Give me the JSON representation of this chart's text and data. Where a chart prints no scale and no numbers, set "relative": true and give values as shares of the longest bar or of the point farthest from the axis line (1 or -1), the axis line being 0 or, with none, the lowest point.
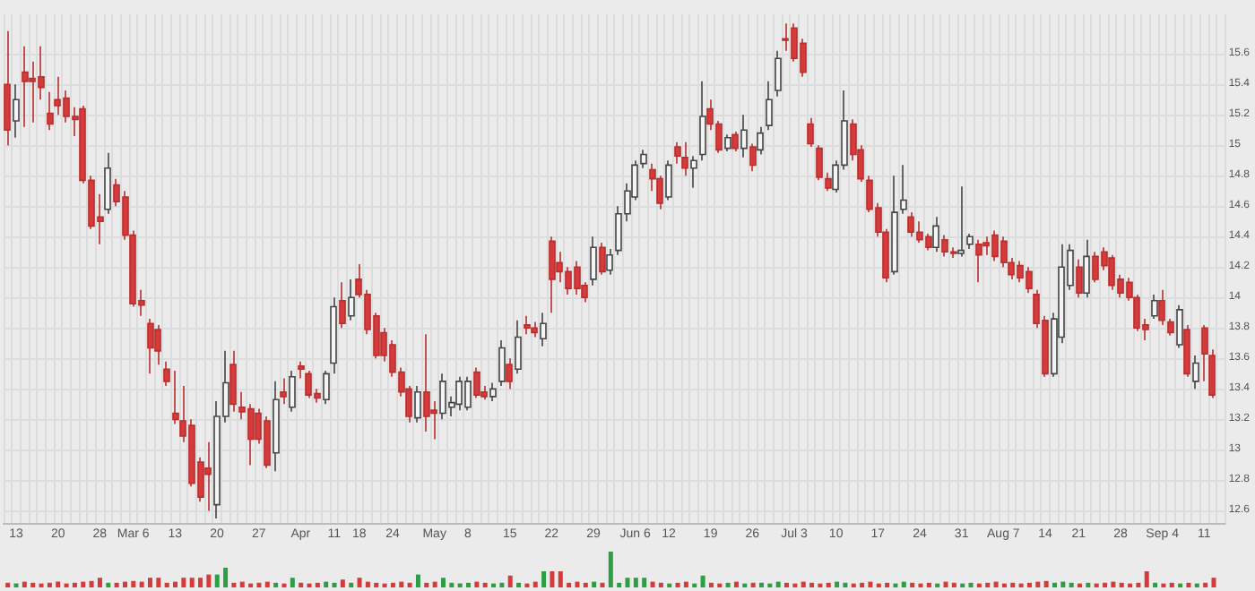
{
  "chart_data": [
    {
      "type": "candlestick",
      "categories": [
        null,
        "13",
        null,
        null,
        null,
        null,
        "20",
        null,
        null,
        null,
        null,
        "28",
        null,
        null,
        null,
        "Mar 6",
        null,
        null,
        null,
        null,
        "13",
        null,
        null,
        null,
        null,
        "20",
        null,
        null,
        null,
        null,
        "27",
        null,
        null,
        null,
        null,
        "Apr",
        null,
        null,
        null,
        "11",
        null,
        null,
        "18",
        null,
        null,
        null,
        "24",
        null,
        null,
        null,
        null,
        "May",
        null,
        null,
        null,
        "8",
        null,
        null,
        null,
        null,
        "15",
        null,
        null,
        null,
        null,
        "22",
        null,
        null,
        null,
        null,
        "29",
        null,
        null,
        null,
        null,
        "Jun 6",
        null,
        null,
        null,
        "12",
        null,
        null,
        null,
        null,
        "19",
        null,
        null,
        null,
        null,
        "26",
        null,
        null,
        null,
        null,
        "Jul 3",
        null,
        null,
        null,
        null,
        "10",
        null,
        null,
        null,
        null,
        "17",
        null,
        null,
        null,
        null,
        "24",
        null,
        null,
        null,
        null,
        "31",
        null,
        null,
        null,
        null,
        "Aug 7",
        null,
        null,
        null,
        null,
        "14",
        null,
        null,
        null,
        "21",
        null,
        null,
        null,
        null,
        "28",
        null,
        null,
        null,
        null,
        "Sep 4",
        null,
        null,
        null,
        null,
        "11",
        null
      ],
      "ohlc": [
        [
          15.4,
          15.75,
          15.0,
          15.1
        ],
        [
          15.16,
          15.4,
          15.05,
          15.3
        ],
        [
          15.48,
          15.65,
          15.12,
          15.42
        ],
        [
          15.44,
          15.55,
          15.15,
          15.42
        ],
        [
          15.45,
          15.65,
          15.3,
          15.38
        ],
        [
          15.21,
          15.35,
          15.1,
          15.14
        ],
        [
          15.3,
          15.45,
          15.2,
          15.26
        ],
        [
          15.31,
          15.36,
          15.15,
          15.19
        ],
        [
          15.19,
          15.25,
          15.06,
          15.17
        ],
        [
          15.24,
          15.26,
          14.75,
          14.77
        ],
        [
          14.77,
          14.8,
          14.45,
          14.47
        ],
        [
          14.53,
          14.68,
          14.35,
          14.5
        ],
        [
          14.58,
          14.95,
          14.55,
          14.85
        ],
        [
          14.74,
          14.78,
          14.6,
          14.63
        ],
        [
          14.66,
          14.7,
          14.38,
          14.41
        ],
        [
          14.41,
          14.44,
          13.94,
          13.96
        ],
        [
          13.98,
          14.05,
          13.88,
          13.95
        ],
        [
          13.83,
          13.86,
          13.5,
          13.67
        ],
        [
          13.79,
          13.82,
          13.56,
          13.65
        ],
        [
          13.53,
          13.58,
          13.42,
          13.45
        ],
        [
          13.24,
          13.52,
          13.17,
          13.2
        ],
        [
          13.19,
          13.42,
          13.05,
          13.09
        ],
        [
          13.16,
          13.2,
          12.76,
          12.78
        ],
        [
          12.92,
          12.95,
          12.66,
          12.69
        ],
        [
          12.88,
          13.05,
          12.6,
          12.84
        ],
        [
          12.64,
          13.32,
          12.55,
          13.22
        ],
        [
          13.22,
          13.65,
          13.18,
          13.44
        ],
        [
          13.56,
          13.65,
          13.25,
          13.3
        ],
        [
          13.28,
          13.38,
          13.2,
          13.25
        ],
        [
          13.27,
          13.3,
          12.9,
          13.07
        ],
        [
          13.24,
          13.27,
          13.04,
          13.07
        ],
        [
          13.19,
          13.22,
          12.88,
          12.9
        ],
        [
          12.98,
          13.45,
          12.86,
          13.33
        ],
        [
          13.38,
          13.47,
          13.3,
          13.35
        ],
        [
          13.28,
          13.52,
          13.25,
          13.48
        ],
        [
          13.55,
          13.58,
          13.47,
          13.53
        ],
        [
          13.5,
          13.52,
          13.34,
          13.36
        ],
        [
          13.37,
          13.4,
          13.31,
          13.34
        ],
        [
          13.33,
          13.52,
          13.3,
          13.5
        ],
        [
          13.57,
          14.0,
          13.5,
          13.94
        ],
        [
          13.98,
          14.1,
          13.8,
          13.83
        ],
        [
          13.88,
          14.12,
          13.85,
          14.0
        ],
        [
          14.12,
          14.22,
          14.0,
          14.02
        ],
        [
          14.02,
          14.05,
          13.76,
          13.79
        ],
        [
          13.88,
          13.9,
          13.6,
          13.62
        ],
        [
          13.77,
          13.8,
          13.58,
          13.62
        ],
        [
          13.69,
          13.72,
          13.48,
          13.51
        ],
        [
          13.51,
          13.54,
          13.35,
          13.38
        ],
        [
          13.4,
          13.42,
          13.18,
          13.22
        ],
        [
          13.21,
          13.42,
          13.18,
          13.38
        ],
        [
          13.38,
          13.76,
          13.12,
          13.22
        ],
        [
          13.26,
          13.32,
          13.07,
          13.24
        ],
        [
          13.24,
          13.5,
          13.2,
          13.45
        ],
        [
          13.28,
          13.35,
          13.22,
          13.31
        ],
        [
          13.3,
          13.48,
          13.26,
          13.45
        ],
        [
          13.28,
          13.48,
          13.26,
          13.45
        ],
        [
          13.51,
          13.54,
          13.34,
          13.36
        ],
        [
          13.38,
          13.42,
          13.33,
          13.35
        ],
        [
          13.35,
          13.44,
          13.32,
          13.4
        ],
        [
          13.45,
          13.72,
          13.42,
          13.67
        ],
        [
          13.56,
          13.6,
          13.4,
          13.45
        ],
        [
          13.53,
          13.85,
          13.5,
          13.74
        ],
        [
          13.82,
          13.88,
          13.76,
          13.8
        ],
        [
          13.8,
          13.84,
          13.74,
          13.77
        ],
        [
          13.73,
          13.9,
          13.68,
          13.83
        ],
        [
          14.37,
          14.4,
          13.9,
          14.12
        ],
        [
          14.23,
          14.3,
          14.1,
          14.17
        ],
        [
          14.17,
          14.2,
          14.02,
          14.06
        ],
        [
          14.2,
          14.24,
          14.02,
          14.06
        ],
        [
          14.08,
          14.1,
          13.97,
          14.0
        ],
        [
          14.12,
          14.4,
          14.08,
          14.33
        ],
        [
          14.33,
          14.36,
          14.15,
          14.17
        ],
        [
          14.18,
          14.32,
          14.15,
          14.28
        ],
        [
          14.31,
          14.6,
          14.28,
          14.55
        ],
        [
          14.55,
          14.75,
          14.5,
          14.7
        ],
        [
          14.66,
          14.9,
          14.64,
          14.87
        ],
        [
          14.88,
          14.97,
          14.85,
          14.94
        ],
        [
          14.84,
          14.88,
          14.7,
          14.78
        ],
        [
          14.78,
          14.8,
          14.58,
          14.62
        ],
        [
          14.66,
          14.9,
          14.64,
          14.87
        ],
        [
          14.99,
          15.02,
          14.88,
          14.93
        ],
        [
          14.92,
          15.02,
          14.8,
          14.85
        ],
        [
          14.85,
          14.93,
          14.72,
          14.9
        ],
        [
          14.94,
          15.42,
          14.9,
          15.19
        ],
        [
          15.24,
          15.3,
          15.1,
          15.14
        ],
        [
          15.14,
          15.16,
          14.95,
          14.97
        ],
        [
          14.98,
          15.07,
          14.96,
          15.05
        ],
        [
          15.07,
          15.09,
          14.96,
          14.98
        ],
        [
          14.98,
          15.2,
          14.92,
          15.1
        ],
        [
          14.99,
          15.01,
          14.83,
          14.87
        ],
        [
          14.97,
          15.12,
          14.94,
          15.08
        ],
        [
          15.13,
          15.42,
          15.1,
          15.3
        ],
        [
          15.36,
          15.62,
          15.32,
          15.57
        ],
        [
          15.7,
          15.8,
          15.62,
          15.69
        ],
        [
          15.77,
          15.8,
          15.55,
          15.57
        ],
        [
          15.67,
          15.7,
          15.45,
          15.48
        ],
        [
          15.14,
          15.18,
          14.99,
          15.01
        ],
        [
          14.98,
          15.0,
          14.77,
          14.79
        ],
        [
          14.78,
          14.82,
          14.7,
          14.72
        ],
        [
          14.71,
          14.9,
          14.69,
          14.87
        ],
        [
          14.87,
          15.36,
          14.84,
          15.16
        ],
        [
          15.14,
          15.17,
          14.9,
          14.94
        ],
        [
          14.97,
          15.0,
          14.76,
          14.78
        ],
        [
          14.77,
          14.8,
          14.56,
          14.58
        ],
        [
          14.59,
          14.62,
          14.4,
          14.43
        ],
        [
          14.43,
          14.45,
          14.1,
          14.13
        ],
        [
          14.17,
          14.8,
          14.15,
          14.56
        ],
        [
          14.58,
          14.87,
          14.55,
          14.64
        ],
        [
          14.53,
          14.56,
          14.4,
          14.43
        ],
        [
          14.43,
          14.5,
          14.36,
          14.38
        ],
        [
          14.4,
          14.42,
          14.31,
          14.33
        ],
        [
          14.33,
          14.53,
          14.3,
          14.47
        ],
        [
          14.38,
          14.41,
          14.27,
          14.3
        ],
        [
          14.3,
          14.33,
          14.26,
          14.29
        ],
        [
          14.29,
          14.73,
          14.27,
          14.31
        ],
        [
          14.35,
          14.42,
          14.32,
          14.4
        ],
        [
          14.35,
          14.38,
          14.1,
          14.28
        ],
        [
          14.36,
          14.4,
          14.28,
          14.34
        ],
        [
          14.41,
          14.44,
          14.24,
          14.27
        ],
        [
          14.37,
          14.4,
          14.2,
          14.23
        ],
        [
          14.23,
          14.26,
          14.12,
          14.15
        ],
        [
          14.21,
          14.24,
          14.1,
          14.13
        ],
        [
          14.17,
          14.2,
          14.03,
          14.06
        ],
        [
          14.02,
          14.05,
          13.8,
          13.83
        ],
        [
          13.85,
          13.88,
          13.48,
          13.5
        ],
        [
          13.5,
          13.9,
          13.48,
          13.86
        ],
        [
          13.74,
          14.35,
          13.7,
          14.2
        ],
        [
          14.08,
          14.35,
          14.05,
          14.31
        ],
        [
          14.2,
          14.25,
          14.0,
          14.03
        ],
        [
          14.03,
          14.38,
          14.0,
          14.27
        ],
        [
          14.27,
          14.3,
          14.1,
          14.12
        ],
        [
          14.3,
          14.33,
          14.18,
          14.21
        ],
        [
          14.26,
          14.28,
          14.05,
          14.08
        ],
        [
          14.12,
          14.15,
          14.0,
          14.03
        ],
        [
          14.1,
          14.13,
          13.98,
          14.0
        ],
        [
          14.0,
          14.02,
          13.78,
          13.8
        ],
        [
          13.82,
          13.86,
          13.72,
          13.79
        ],
        [
          13.88,
          14.02,
          13.86,
          13.98
        ],
        [
          13.98,
          14.05,
          13.82,
          13.85
        ],
        [
          13.84,
          13.86,
          13.75,
          13.77
        ],
        [
          13.69,
          13.95,
          13.67,
          13.92
        ],
        [
          13.79,
          13.82,
          13.48,
          13.5
        ],
        [
          13.45,
          13.62,
          13.4,
          13.57
        ],
        [
          13.8,
          13.82,
          13.45,
          13.63
        ],
        [
          13.62,
          13.66,
          13.34,
          13.36
        ]
      ],
      "ylim": [
        12.52,
        15.86
      ],
      "yticks": [
        12.6,
        12.8,
        13,
        13.2,
        13.4,
        13.6,
        13.8,
        14,
        14.2,
        14.4,
        14.6,
        14.8,
        15,
        15.2,
        15.4,
        15.6
      ],
      "grid": true
    },
    {
      "type": "bar",
      "relative": true,
      "tick_labels": false,
      "categories": [
        null,
        null,
        null,
        null,
        null,
        null,
        null,
        null,
        null,
        null,
        null,
        null,
        null,
        null,
        null,
        null,
        null,
        null,
        null,
        null,
        null,
        null,
        null,
        null,
        null,
        null,
        null,
        null,
        null,
        null,
        null,
        null,
        null,
        null,
        null,
        null,
        null,
        null,
        null,
        null,
        null,
        null,
        null,
        null,
        null,
        null,
        null,
        null,
        null,
        null,
        null,
        null,
        null,
        null,
        null,
        null,
        null,
        null,
        null,
        null,
        null,
        null,
        null,
        null,
        null,
        null,
        null,
        null,
        null,
        null,
        null,
        null,
        null,
        null,
        null,
        null,
        null,
        null,
        null,
        null,
        null,
        null,
        null,
        null,
        null,
        null,
        null,
        null,
        null,
        null,
        null,
        null,
        null,
        null,
        null,
        null,
        null,
        null,
        null,
        null,
        null,
        null,
        null,
        null,
        null,
        null,
        null,
        null,
        null,
        null,
        null,
        null,
        null,
        null,
        null,
        null,
        null,
        null,
        null,
        null,
        null,
        null,
        null,
        null,
        null,
        null,
        null,
        null,
        null,
        null,
        null,
        null,
        null,
        null,
        null,
        null,
        null,
        null,
        null,
        null,
        null,
        null,
        null,
        null,
        null
      ],
      "values": [
        0.13,
        0.11,
        0.16,
        0.13,
        0.11,
        0.13,
        0.16,
        0.11,
        0.13,
        0.16,
        0.18,
        0.27,
        0.13,
        0.13,
        0.16,
        0.18,
        0.16,
        0.27,
        0.27,
        0.13,
        0.16,
        0.27,
        0.27,
        0.27,
        0.36,
        0.36,
        0.55,
        0.13,
        0.16,
        0.11,
        0.13,
        0.16,
        0.13,
        0.11,
        0.27,
        0.13,
        0.11,
        0.13,
        0.16,
        0.13,
        0.22,
        0.13,
        0.27,
        0.16,
        0.13,
        0.11,
        0.13,
        0.16,
        0.13,
        0.36,
        0.13,
        0.16,
        0.27,
        0.13,
        0.11,
        0.13,
        0.16,
        0.13,
        0.11,
        0.13,
        0.33,
        0.13,
        0.11,
        0.16,
        0.45,
        0.45,
        0.45,
        0.13,
        0.16,
        0.13,
        0.16,
        0.13,
        1,
        0.13,
        0.27,
        0.27,
        0.27,
        0.16,
        0.13,
        0.11,
        0.13,
        0.16,
        0.11,
        0.33,
        0.13,
        0.11,
        0.13,
        0.16,
        0.11,
        0.13,
        0.13,
        0.11,
        0.16,
        0.13,
        0.11,
        0.16,
        0.13,
        0.11,
        0.13,
        0.16,
        0.13,
        0.11,
        0.13,
        0.16,
        0.11,
        0.13,
        0.11,
        0.16,
        0.13,
        0.11,
        0.13,
        0.11,
        0.16,
        0.13,
        0.11,
        0.13,
        0.11,
        0.13,
        0.16,
        0.11,
        0.13,
        0.11,
        0.13,
        0.16,
        0.18,
        0.13,
        0.16,
        0.13,
        0.11,
        0.13,
        0.11,
        0.13,
        0.16,
        0.13,
        0.11,
        0.13,
        0.45,
        0.13,
        0.11,
        0.13,
        0.11,
        0.13,
        0.11,
        0.13,
        0.27
      ],
      "colors": [
        "#d63a3a",
        "#2e9e44",
        "#d63a3a",
        "#d63a3a",
        "#d63a3a",
        "#d63a3a",
        "#d63a3a",
        "#d63a3a",
        "#d63a3a",
        "#d63a3a",
        "#d63a3a",
        "#d63a3a",
        "#2e9e44",
        "#d63a3a",
        "#d63a3a",
        "#d63a3a",
        "#d63a3a",
        "#d63a3a",
        "#d63a3a",
        "#d63a3a",
        "#d63a3a",
        "#d63a3a",
        "#d63a3a",
        "#d63a3a",
        "#d63a3a",
        "#2e9e44",
        "#2e9e44",
        "#d63a3a",
        "#d63a3a",
        "#d63a3a",
        "#d63a3a",
        "#d63a3a",
        "#2e9e44",
        "#d63a3a",
        "#2e9e44",
        "#d63a3a",
        "#d63a3a",
        "#d63a3a",
        "#2e9e44",
        "#2e9e44",
        "#d63a3a",
        "#2e9e44",
        "#d63a3a",
        "#d63a3a",
        "#d63a3a",
        "#d63a3a",
        "#d63a3a",
        "#d63a3a",
        "#d63a3a",
        "#2e9e44",
        "#d63a3a",
        "#d63a3a",
        "#2e9e44",
        "#2e9e44",
        "#2e9e44",
        "#2e9e44",
        "#d63a3a",
        "#d63a3a",
        "#2e9e44",
        "#2e9e44",
        "#d63a3a",
        "#2e9e44",
        "#d63a3a",
        "#d63a3a",
        "#2e9e44",
        "#d63a3a",
        "#d63a3a",
        "#d63a3a",
        "#d63a3a",
        "#d63a3a",
        "#2e9e44",
        "#d63a3a",
        "#2e9e44",
        "#2e9e44",
        "#2e9e44",
        "#2e9e44",
        "#2e9e44",
        "#d63a3a",
        "#d63a3a",
        "#2e9e44",
        "#d63a3a",
        "#d63a3a",
        "#2e9e44",
        "#2e9e44",
        "#d63a3a",
        "#d63a3a",
        "#2e9e44",
        "#d63a3a",
        "#2e9e44",
        "#d63a3a",
        "#2e9e44",
        "#2e9e44",
        "#2e9e44",
        "#d63a3a",
        "#d63a3a",
        "#d63a3a",
        "#d63a3a",
        "#d63a3a",
        "#d63a3a",
        "#2e9e44",
        "#2e9e44",
        "#d63a3a",
        "#d63a3a",
        "#d63a3a",
        "#d63a3a",
        "#d63a3a",
        "#2e9e44",
        "#2e9e44",
        "#d63a3a",
        "#d63a3a",
        "#d63a3a",
        "#2e9e44",
        "#d63a3a",
        "#d63a3a",
        "#2e9e44",
        "#2e9e44",
        "#d63a3a",
        "#d63a3a",
        "#d63a3a",
        "#d63a3a",
        "#d63a3a",
        "#d63a3a",
        "#d63a3a",
        "#d63a3a",
        "#d63a3a",
        "#2e9e44",
        "#2e9e44",
        "#2e9e44",
        "#d63a3a",
        "#2e9e44",
        "#d63a3a",
        "#d63a3a",
        "#d63a3a",
        "#d63a3a",
        "#d63a3a",
        "#d63a3a",
        "#d63a3a",
        "#2e9e44",
        "#d63a3a",
        "#d63a3a",
        "#2e9e44",
        "#d63a3a",
        "#2e9e44",
        "#d63a3a",
        "#d63a3a"
      ]
    }
  ]
}
